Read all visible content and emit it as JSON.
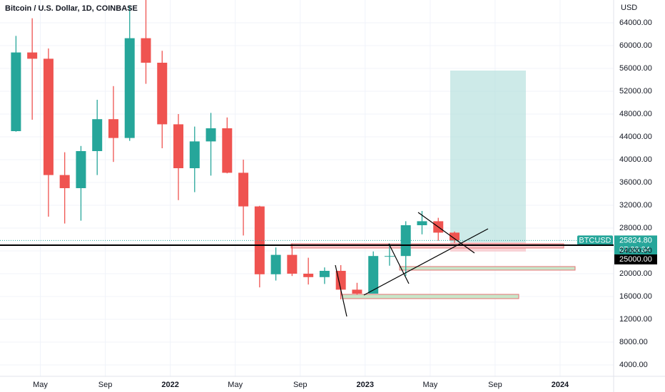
{
  "chart_data": {
    "type": "candlestick",
    "title": "Bitcoin / U.S. Dollar, 1D, COINBASE",
    "y_unit": "USD",
    "x": [
      "2021-03",
      "2021-04",
      "2021-05",
      "2021-06",
      "2021-07",
      "2021-08",
      "2021-09",
      "2021-10",
      "2021-11",
      "2021-12",
      "2022-01",
      "2022-02",
      "2022-03",
      "2022-04",
      "2022-05",
      "2022-06",
      "2022-07",
      "2022-08",
      "2022-09",
      "2022-10",
      "2022-11",
      "2022-12",
      "2023-01",
      "2023-02",
      "2023-03",
      "2023-04",
      "2023-05",
      "2023-06"
    ],
    "candles": [
      [
        45000,
        61700,
        44900,
        58800
      ],
      [
        58800,
        64800,
        47000,
        57700
      ],
      [
        57700,
        59500,
        30000,
        37300
      ],
      [
        37300,
        41300,
        28800,
        35000
      ],
      [
        35000,
        42400,
        29300,
        41500
      ],
      [
        41500,
        50500,
        37300,
        47100
      ],
      [
        47100,
        52900,
        39600,
        43800
      ],
      [
        43800,
        67000,
        43300,
        61300
      ],
      [
        61300,
        69000,
        53300,
        57000
      ],
      [
        57000,
        59100,
        42000,
        46200
      ],
      [
        46200,
        48000,
        32900,
        38500
      ],
      [
        38500,
        45800,
        34300,
        43200
      ],
      [
        43200,
        48200,
        37200,
        45500
      ],
      [
        45500,
        47400,
        37600,
        37700
      ],
      [
        37700,
        40000,
        26700,
        31800
      ],
      [
        31800,
        31900,
        17600,
        19900
      ],
      [
        19900,
        24600,
        18800,
        23300
      ],
      [
        23300,
        25200,
        19600,
        20000
      ],
      [
        20000,
        22800,
        18100,
        19400
      ],
      [
        19400,
        21100,
        18200,
        20500
      ],
      [
        20500,
        21500,
        15500,
        17200
      ],
      [
        17200,
        18400,
        16300,
        16500
      ],
      [
        16500,
        23900,
        16500,
        23100
      ],
      [
        23100,
        25300,
        21400,
        23100
      ],
      [
        23100,
        29200,
        19600,
        28500
      ],
      [
        28500,
        31000,
        26900,
        29200
      ],
      [
        29200,
        29800,
        25800,
        27200
      ],
      [
        27200,
        27400,
        25400,
        25824.8
      ]
    ],
    "up_color": "#26a69a",
    "down_color": "#ef5350",
    "xlim": [
      "2021-02",
      "2024-04"
    ],
    "xticks": [
      {
        "value": "2021-05",
        "label": "May"
      },
      {
        "value": "2021-09",
        "label": "Sep"
      },
      {
        "value": "2022-01",
        "label": "2022"
      },
      {
        "value": "2022-05",
        "label": "May"
      },
      {
        "value": "2022-09",
        "label": "Sep"
      },
      {
        "value": "2023-01",
        "label": "2023"
      },
      {
        "value": "2023-05",
        "label": "May"
      },
      {
        "value": "2023-09",
        "label": "Sep"
      },
      {
        "value": "2024-01",
        "label": "2024"
      }
    ],
    "ylim": [
      2000,
      68000
    ],
    "yticks": [
      {
        "value": 4000,
        "label": "4000.00"
      },
      {
        "value": 8000,
        "label": "8000.00"
      },
      {
        "value": 12000,
        "label": "12000.00"
      },
      {
        "value": 16000,
        "label": "16000.00"
      },
      {
        "value": 20000,
        "label": "20000.00"
      },
      {
        "value": 24000,
        "label": "24000.00"
      },
      {
        "value": 28000,
        "label": "28000.00"
      },
      {
        "value": 32000,
        "label": "32000.00"
      },
      {
        "value": 36000,
        "label": "36000.00"
      },
      {
        "value": 40000,
        "label": "40000.00"
      },
      {
        "value": 44000,
        "label": "44000.00"
      },
      {
        "value": 48000,
        "label": "48000.00"
      },
      {
        "value": 52000,
        "label": "52000.00"
      },
      {
        "value": 56000,
        "label": "56000.00"
      },
      {
        "value": 60000,
        "label": "60000.00"
      },
      {
        "value": 64000,
        "label": "64000.00"
      }
    ],
    "grid": true,
    "last_price": {
      "symbol": "BTCUSD",
      "value": 25824.8,
      "label": "25824.80",
      "countdown": "07:33:34",
      "color": "#26a69a"
    },
    "level": {
      "value": 25000,
      "label": "25000.00",
      "color": "#000000"
    }
  }
}
